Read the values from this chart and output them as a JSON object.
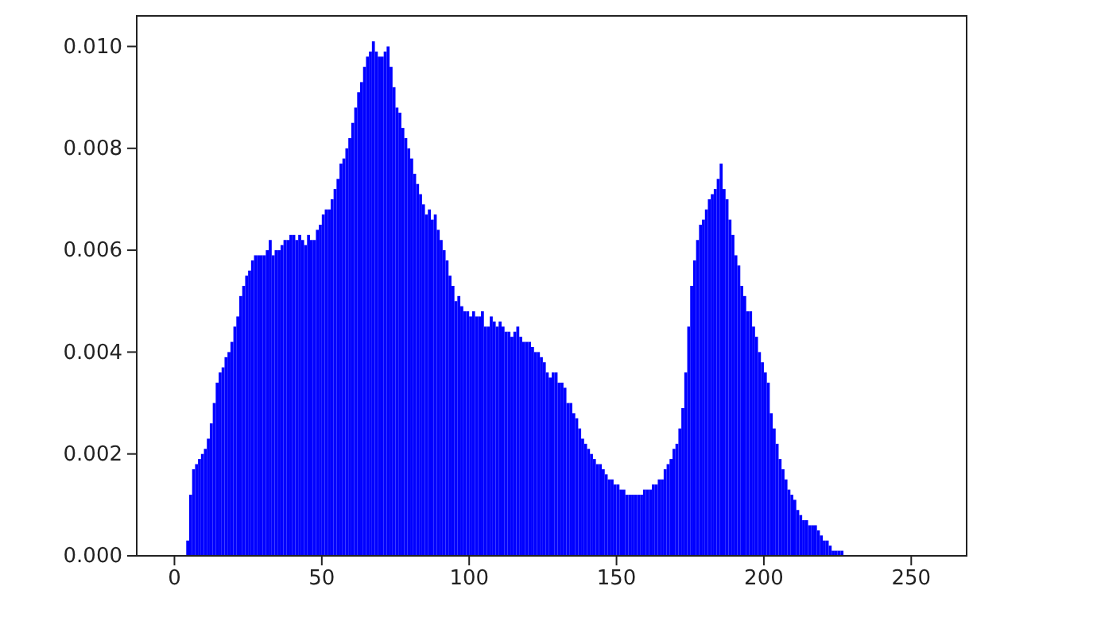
{
  "chart_data": {
    "type": "histogram",
    "color": "#0000ff",
    "bins": [
      0,
      1,
      2,
      3,
      4,
      5,
      6,
      7,
      8,
      9,
      10,
      11,
      12,
      13,
      14,
      15,
      16,
      17,
      18,
      19,
      20,
      21,
      22,
      23,
      24,
      25,
      26,
      27,
      28,
      29,
      30,
      31,
      32,
      33,
      34,
      35,
      36,
      37,
      38,
      39,
      40,
      41,
      42,
      43,
      44,
      45,
      46,
      47,
      48,
      49,
      50,
      51,
      52,
      53,
      54,
      55,
      56,
      57,
      58,
      59,
      60,
      61,
      62,
      63,
      64,
      65,
      66,
      67,
      68,
      69,
      70,
      71,
      72,
      73,
      74,
      75,
      76,
      77,
      78,
      79,
      80,
      81,
      82,
      83,
      84,
      85,
      86,
      87,
      88,
      89,
      90,
      91,
      92,
      93,
      94,
      95,
      96,
      97,
      98,
      99,
      100,
      101,
      102,
      103,
      104,
      105,
      106,
      107,
      108,
      109,
      110,
      111,
      112,
      113,
      114,
      115,
      116,
      117,
      118,
      119,
      120,
      121,
      122,
      123,
      124,
      125,
      126,
      127,
      128,
      129,
      130,
      131,
      132,
      133,
      134,
      135,
      136,
      137,
      138,
      139,
      140,
      141,
      142,
      143,
      144,
      145,
      146,
      147,
      148,
      149,
      150,
      151,
      152,
      153,
      154,
      155,
      156,
      157,
      158,
      159,
      160,
      161,
      162,
      163,
      164,
      165,
      166,
      167,
      168,
      169,
      170,
      171,
      172,
      173,
      174,
      175,
      176,
      177,
      178,
      179,
      180,
      181,
      182,
      183,
      184,
      185,
      186,
      187,
      188,
      189,
      190,
      191,
      192,
      193,
      194,
      195,
      196,
      197,
      198,
      199,
      200,
      201,
      202,
      203,
      204,
      205,
      206,
      207,
      208,
      209,
      210,
      211,
      212,
      213,
      214,
      215,
      216,
      217,
      218,
      219,
      220,
      221,
      222,
      223,
      224,
      225,
      226,
      227,
      228,
      229,
      230,
      231,
      232,
      233,
      234,
      235,
      236,
      237,
      238,
      239,
      240,
      241,
      242,
      243,
      244,
      245,
      246,
      247,
      248,
      249,
      250,
      251,
      252,
      253,
      254,
      255,
      256
    ],
    "values": [
      0,
      0,
      0,
      0,
      0.0003,
      0.0012,
      0.0017,
      0.0018,
      0.0019,
      0.002,
      0.0021,
      0.0023,
      0.0026,
      0.003,
      0.0034,
      0.0036,
      0.0037,
      0.0039,
      0.004,
      0.0042,
      0.0045,
      0.0047,
      0.0051,
      0.0053,
      0.0055,
      0.0056,
      0.0058,
      0.0059,
      0.0059,
      0.0059,
      0.0059,
      0.006,
      0.0062,
      0.0059,
      0.006,
      0.006,
      0.0061,
      0.0062,
      0.0062,
      0.0063,
      0.0063,
      0.0062,
      0.0063,
      0.0062,
      0.0061,
      0.0063,
      0.0062,
      0.0062,
      0.0064,
      0.0065,
      0.0067,
      0.0068,
      0.0068,
      0.007,
      0.0072,
      0.0074,
      0.0077,
      0.0078,
      0.008,
      0.0082,
      0.0085,
      0.0088,
      0.0091,
      0.0093,
      0.0096,
      0.0098,
      0.0099,
      0.0101,
      0.0099,
      0.0098,
      0.0098,
      0.0099,
      0.01,
      0.0096,
      0.0092,
      0.0088,
      0.0087,
      0.0084,
      0.0082,
      0.008,
      0.0078,
      0.0075,
      0.0073,
      0.0071,
      0.0069,
      0.0067,
      0.0068,
      0.0066,
      0.0067,
      0.0064,
      0.0062,
      0.006,
      0.0058,
      0.0055,
      0.0053,
      0.005,
      0.0051,
      0.0049,
      0.0048,
      0.0048,
      0.0047,
      0.0048,
      0.0047,
      0.0047,
      0.0048,
      0.0045,
      0.0045,
      0.0047,
      0.0046,
      0.0045,
      0.0046,
      0.0045,
      0.0044,
      0.0044,
      0.0043,
      0.0044,
      0.0045,
      0.0043,
      0.0042,
      0.0042,
      0.0042,
      0.0041,
      0.004,
      0.004,
      0.0039,
      0.0038,
      0.0036,
      0.0035,
      0.0036,
      0.0036,
      0.0034,
      0.0034,
      0.0033,
      0.003,
      0.003,
      0.0028,
      0.0027,
      0.0025,
      0.0023,
      0.0022,
      0.0021,
      0.002,
      0.0019,
      0.0018,
      0.0018,
      0.0017,
      0.0016,
      0.0015,
      0.0015,
      0.0014,
      0.0014,
      0.0013,
      0.0013,
      0.0012,
      0.0012,
      0.0012,
      0.0012,
      0.0012,
      0.0012,
      0.0013,
      0.0013,
      0.0013,
      0.0014,
      0.0014,
      0.0015,
      0.0015,
      0.0017,
      0.0018,
      0.0019,
      0.0021,
      0.0022,
      0.0025,
      0.0029,
      0.0036,
      0.0045,
      0.0053,
      0.0058,
      0.0062,
      0.0065,
      0.0066,
      0.0068,
      0.007,
      0.0071,
      0.0072,
      0.0074,
      0.0077,
      0.0072,
      0.007,
      0.0066,
      0.0063,
      0.0059,
      0.0057,
      0.0053,
      0.0051,
      0.0048,
      0.0048,
      0.0045,
      0.0043,
      0.004,
      0.0038,
      0.0036,
      0.0034,
      0.0028,
      0.0025,
      0.0022,
      0.0019,
      0.0017,
      0.0015,
      0.0013,
      0.0012,
      0.0011,
      0.0009,
      0.0008,
      0.0007,
      0.0007,
      0.0006,
      0.0006,
      0.0006,
      0.0005,
      0.0004,
      0.0003,
      0.0003,
      0.0002,
      0.0001,
      0.0001,
      0.0001,
      0.0001,
      0,
      0,
      0,
      0,
      0,
      0,
      0,
      0,
      0,
      0,
      0,
      0,
      0,
      0,
      0,
      0,
      0,
      0,
      0,
      0,
      0,
      0,
      0,
      0,
      0,
      0,
      0,
      0,
      0
    ],
    "xlim": [
      -12.8,
      268.8
    ],
    "xticks": [
      0,
      50,
      100,
      150,
      200,
      250
    ],
    "ylim": [
      0,
      0.0106
    ],
    "yticks": [
      {
        "value": 0,
        "label": "0.000"
      },
      {
        "value": 0.002,
        "label": "0.002"
      },
      {
        "value": 0.004,
        "label": "0.004"
      },
      {
        "value": 0.006,
        "label": "0.006"
      },
      {
        "value": 0.008,
        "label": "0.008"
      },
      {
        "value": 0.01,
        "label": "0.010"
      }
    ]
  }
}
